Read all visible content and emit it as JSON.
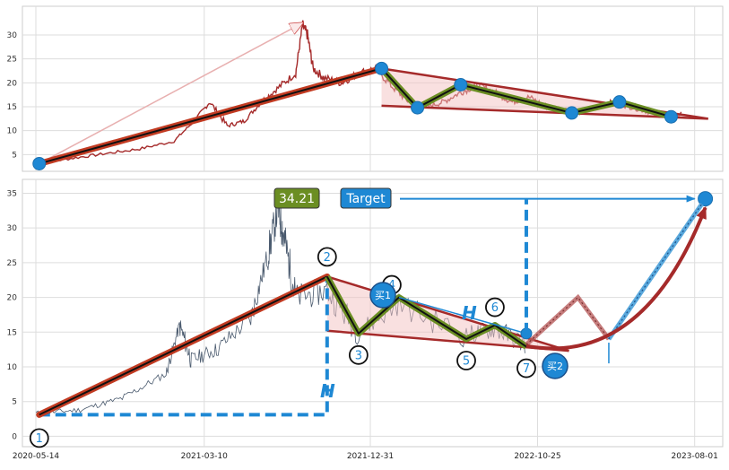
{
  "chart_data": [
    {
      "type": "line",
      "panel": "top",
      "ylim": [
        1.5,
        36
      ],
      "yticks": [
        5,
        10,
        15,
        20,
        25,
        30
      ],
      "grid": true,
      "xlim": [
        "2020-04-20",
        "2023-09-20"
      ],
      "series": [
        {
          "values_x": [
            "2020-05-14",
            "2020-07-15",
            "2020-09-15",
            "2020-11-15",
            "2021-01-15",
            "2021-02-20",
            "2021-03-20",
            "2021-04-20",
            "2021-05-20",
            "2021-06-20",
            "2021-07-20",
            "2021-08-20",
            "2021-09-01",
            "2021-09-10",
            "2021-09-20",
            "2021-10-10",
            "2021-11-10",
            "2021-12-10",
            "2022-01-10",
            "2022-02-10",
            "2022-03-10",
            "2022-04-10",
            "2022-05-10",
            "2022-06-10",
            "2022-07-10",
            "2022-08-10",
            "2022-09-10",
            "2022-10-10",
            "2022-11-10",
            "2022-12-10",
            "2023-01-10",
            "2023-02-10",
            "2023-03-10",
            "2023-04-10",
            "2023-05-10",
            "2023-06-10",
            "2023-07-10"
          ],
          "values_y": [
            3.1,
            4.2,
            5.2,
            6.2,
            7.8,
            12,
            16,
            11,
            12,
            16,
            19,
            22,
            32,
            30,
            23,
            21,
            20,
            22,
            23,
            19,
            16,
            15,
            16,
            18,
            19.5,
            18,
            16,
            17,
            15,
            14.5,
            14,
            15,
            16,
            15,
            14,
            13,
            13.5
          ]
        }
      ],
      "pattern_points": [
        {
          "x": "2020-05-20",
          "y": 3.1
        },
        {
          "x": "2022-01-20",
          "y": 23
        },
        {
          "x": "2022-03-25",
          "y": 14.8
        },
        {
          "x": "2022-06-10",
          "y": 19.6
        },
        {
          "x": "2022-12-25",
          "y": 13.7
        },
        {
          "x": "2023-03-20",
          "y": 16
        },
        {
          "x": "2023-06-20",
          "y": 12.9
        }
      ]
    },
    {
      "type": "line",
      "panel": "bottom",
      "ylim": [
        -1.5,
        37
      ],
      "yticks": [
        0,
        5,
        10,
        15,
        20,
        25,
        30,
        35
      ],
      "xticks": [
        "2020-05-14",
        "2021-03-10",
        "2021-12-31",
        "2022-10-25",
        "2023-08-01"
      ],
      "grid": true,
      "xlim": [
        "2020-04-20",
        "2023-09-20"
      ],
      "labels": {
        "price_box": "34.21",
        "target_box": "Target",
        "height_mark": "H",
        "buy1": "买1",
        "buy2": "买2"
      },
      "point_numbers": [
        "1",
        "2",
        "3",
        "4",
        "5",
        "6",
        "7"
      ],
      "pattern_points": [
        {
          "x": "2020-05-20",
          "y": 3.1
        },
        {
          "x": "2021-10-15",
          "y": 23
        },
        {
          "x": "2021-12-10",
          "y": 14.8
        },
        {
          "x": "2022-02-20",
          "y": 20
        },
        {
          "x": "2022-06-20",
          "y": 14
        },
        {
          "x": "2022-08-10",
          "y": 16
        },
        {
          "x": "2022-10-05",
          "y": 12.9
        }
      ],
      "target_value": 34.21,
      "colors": {
        "price_line": "#4a5a6e",
        "trend": "#c23b22",
        "wedge": "#a52a2a",
        "zigzag": "#6b8e23",
        "accent": "#1e88d4",
        "wedge_fill": "#f4c2c2"
      }
    }
  ]
}
